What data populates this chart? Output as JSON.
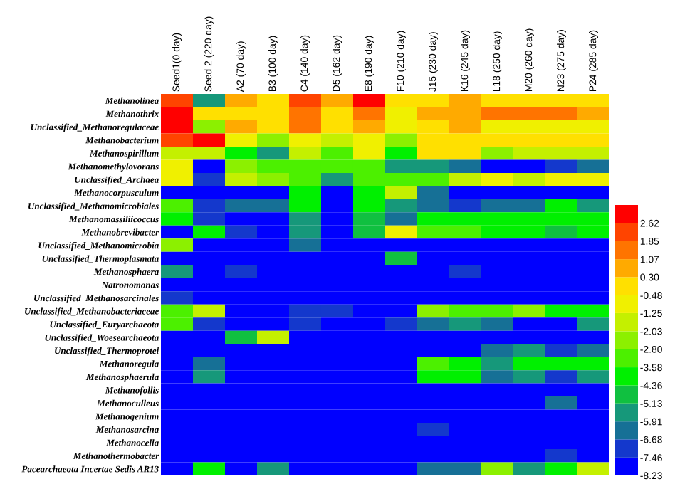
{
  "chart_data": {
    "type": "heatmap",
    "categories": [
      "Seed1(0 day)",
      "Seed 2 (220 day)",
      "A2 (70 day)",
      "B3 (100 day)",
      "C4 (140 day)",
      "D5 (162 day)",
      "E8 (190 day)",
      "F10 (210 day)",
      "J15 (230 day)",
      "K16 (245 day)",
      "L18 (250 day)",
      "M20 (260 day)",
      "N23 (275 day)",
      "P24 (285 day)"
    ],
    "y_categories": [
      "Methanolinea",
      "Methanothrix",
      "Unclassified_Methanoregulaceae",
      "Methanobacterium",
      "Methanospirillum",
      "Methanomethylovorans",
      "Unclassified_Archaea",
      "Methanocorpusculum",
      "Unclassified_Methanomicrobiales",
      "Methanomassiliicoccus",
      "Methanobrevibacter",
      "Unclassified_Methanomicrobia",
      "Unclassified_Thermoplasmata",
      "Methanosphaera",
      "Natronomonas",
      "Unclassified_Methanosarcinales",
      "Unclassified_Methanobacteriaceae",
      "Unclassified_Euryarchaeota",
      "Unclassified_Woesearchaeota",
      "Unclassified_Thermoprotei",
      "Methanoregula",
      "Methanosphaerula",
      "Methanofollis",
      "Methanoculleus",
      "Methanogenium",
      "Methanosarcina",
      "Methanocella",
      "Methanothermobacter",
      "Pacearchaeota Incertae Sedis AR13"
    ],
    "cells": [
      [
        2.24,
        -5.52,
        0.68,
        -0.09,
        2.24,
        0.68,
        3.01,
        -0.09,
        -0.09,
        0.68,
        -0.09,
        -0.09,
        -0.09,
        -0.09
      ],
      [
        3.01,
        -0.09,
        -0.09,
        -0.09,
        1.46,
        -0.09,
        1.46,
        -0.87,
        0.68,
        0.68,
        1.46,
        1.46,
        1.46,
        0.68
      ],
      [
        3.01,
        -2.42,
        0.68,
        -0.09,
        1.46,
        -0.09,
        0.68,
        -0.87,
        -0.09,
        0.68,
        -0.87,
        -0.87,
        -0.87,
        -0.87
      ],
      [
        2.24,
        3.01,
        -0.87,
        -2.42,
        -0.87,
        -1.64,
        -0.87,
        -2.42,
        -0.09,
        -0.09,
        -0.09,
        -0.09,
        -0.09,
        -0.09
      ],
      [
        -1.64,
        -1.64,
        -3.97,
        -5.52,
        -1.64,
        -3.19,
        -0.87,
        -3.97,
        -0.09,
        -0.09,
        -2.42,
        -1.64,
        -1.64,
        -1.64
      ],
      [
        -0.87,
        -7.84,
        -2.42,
        -3.19,
        -3.19,
        -3.19,
        -3.19,
        -5.52,
        -5.52,
        -6.29,
        -7.84,
        -7.84,
        -7.07,
        -6.29
      ],
      [
        -0.87,
        -7.07,
        -1.64,
        -2.42,
        -3.19,
        -5.52,
        -3.19,
        -3.19,
        -3.19,
        -1.64,
        -0.87,
        -1.64,
        -0.87,
        -0.87
      ],
      [
        -7.84,
        -7.84,
        -7.84,
        -7.84,
        -3.97,
        -7.84,
        -3.97,
        -1.64,
        -6.29,
        -7.84,
        -7.84,
        -7.84,
        -7.84,
        -7.84
      ],
      [
        -3.19,
        -7.07,
        -6.29,
        -6.29,
        -3.97,
        -7.84,
        -3.97,
        -5.52,
        -6.29,
        -7.07,
        -6.29,
        -6.29,
        -3.97,
        -5.52
      ],
      [
        -3.97,
        -7.07,
        -7.84,
        -7.84,
        -5.52,
        -7.84,
        -4.74,
        -6.29,
        -3.97,
        -3.97,
        -3.97,
        -3.97,
        -3.97,
        -3.97
      ],
      [
        -7.84,
        -3.97,
        -7.07,
        -7.84,
        -5.52,
        -7.84,
        -4.74,
        -0.87,
        -3.19,
        -3.19,
        -3.97,
        -3.97,
        -4.74,
        -3.97
      ],
      [
        -2.42,
        -7.84,
        -7.84,
        -7.84,
        -6.29,
        -7.84,
        -7.84,
        -7.84,
        -7.84,
        -7.84,
        -7.84,
        -7.84,
        -7.84,
        -7.84
      ],
      [
        -7.84,
        -7.84,
        -7.84,
        -7.84,
        -7.84,
        -7.84,
        -7.84,
        -4.74,
        -7.84,
        -7.84,
        -7.84,
        -7.84,
        -7.84,
        -7.84
      ],
      [
        -5.52,
        -7.84,
        -7.07,
        -7.84,
        -7.84,
        -7.84,
        -7.84,
        -7.84,
        -7.84,
        -7.07,
        -7.84,
        -7.84,
        -7.84,
        -7.84
      ],
      [
        -7.84,
        -7.84,
        -7.84,
        -7.84,
        -7.84,
        -7.84,
        -7.84,
        -7.84,
        -7.84,
        -7.84,
        -7.84,
        -7.84,
        -7.84,
        -7.84
      ],
      [
        -7.07,
        -7.84,
        -7.84,
        -7.84,
        -7.84,
        -7.84,
        -7.84,
        -7.84,
        -7.84,
        -7.84,
        -7.84,
        -7.84,
        -7.84,
        -7.84
      ],
      [
        -3.19,
        -1.64,
        -7.84,
        -7.84,
        -7.07,
        -7.07,
        -7.84,
        -7.84,
        -2.42,
        -3.19,
        -3.19,
        -2.42,
        -3.97,
        -3.97
      ],
      [
        -3.19,
        -7.07,
        -7.84,
        -7.84,
        -7.07,
        -7.84,
        -7.84,
        -7.07,
        -6.29,
        -5.52,
        -6.29,
        -7.84,
        -7.84,
        -5.52
      ],
      [
        -7.84,
        -7.84,
        -4.74,
        -1.64,
        -7.84,
        -7.84,
        -7.84,
        -7.84,
        -7.84,
        -7.84,
        -7.84,
        -7.84,
        -7.84,
        -7.84
      ],
      [
        -7.84,
        -7.84,
        -7.84,
        -7.84,
        -7.84,
        -7.84,
        -7.84,
        -7.84,
        -7.84,
        -7.84,
        -6.29,
        -5.52,
        -7.07,
        -6.29
      ],
      [
        -7.84,
        -6.29,
        -7.84,
        -7.84,
        -7.84,
        -7.84,
        -7.84,
        -7.84,
        -3.19,
        -3.97,
        -5.52,
        -3.97,
        -3.97,
        -3.97
      ],
      [
        -7.84,
        -5.52,
        -7.84,
        -7.84,
        -7.84,
        -7.84,
        -7.84,
        -7.84,
        -3.97,
        -3.97,
        -6.29,
        -5.52,
        -7.07,
        -5.52
      ],
      [
        -7.84,
        -7.84,
        -7.84,
        -7.84,
        -7.84,
        -7.84,
        -7.84,
        -7.84,
        -7.84,
        -7.84,
        -7.84,
        -7.84,
        -7.84,
        -7.84
      ],
      [
        -7.84,
        -7.84,
        -7.84,
        -7.84,
        -7.84,
        -7.84,
        -7.84,
        -7.84,
        -7.84,
        -7.84,
        -7.84,
        -7.84,
        -6.29,
        -7.84
      ],
      [
        -7.84,
        -7.84,
        -7.84,
        -7.84,
        -7.84,
        -7.84,
        -7.84,
        -7.84,
        -7.84,
        -7.84,
        -7.84,
        -7.84,
        -7.84,
        -7.84
      ],
      [
        -7.84,
        -7.84,
        -7.84,
        -7.84,
        -7.84,
        -7.84,
        -7.84,
        -7.84,
        -7.07,
        -7.84,
        -7.84,
        -7.84,
        -7.84,
        -7.84
      ],
      [
        -7.84,
        -7.84,
        -7.84,
        -7.84,
        -7.84,
        -7.84,
        -7.84,
        -7.84,
        -7.84,
        -7.84,
        -7.84,
        -7.84,
        -7.84,
        -7.84
      ],
      [
        -7.84,
        -7.84,
        -7.84,
        -7.84,
        -7.84,
        -7.84,
        -7.84,
        -7.84,
        -7.84,
        -7.84,
        -7.84,
        -7.84,
        -7.07,
        -7.84
      ],
      [
        -7.84,
        -3.97,
        -7.84,
        -5.52,
        -7.84,
        -7.84,
        -7.84,
        -7.84,
        -6.29,
        -6.29,
        -2.42,
        -5.52,
        -3.97,
        -1.64
      ]
    ],
    "clim": [
      -8.23,
      3.4
    ],
    "cticks": [
      -8.23,
      -7.46,
      -6.68,
      -5.91,
      -5.13,
      -4.36,
      -3.58,
      {
        "value": -2.8,
        "label": "-2.80"
      },
      -2.03,
      -1.25,
      -0.48,
      {
        "value": 0.3,
        "label": "0.30"
      },
      1.07,
      1.85,
      2.62
    ]
  }
}
